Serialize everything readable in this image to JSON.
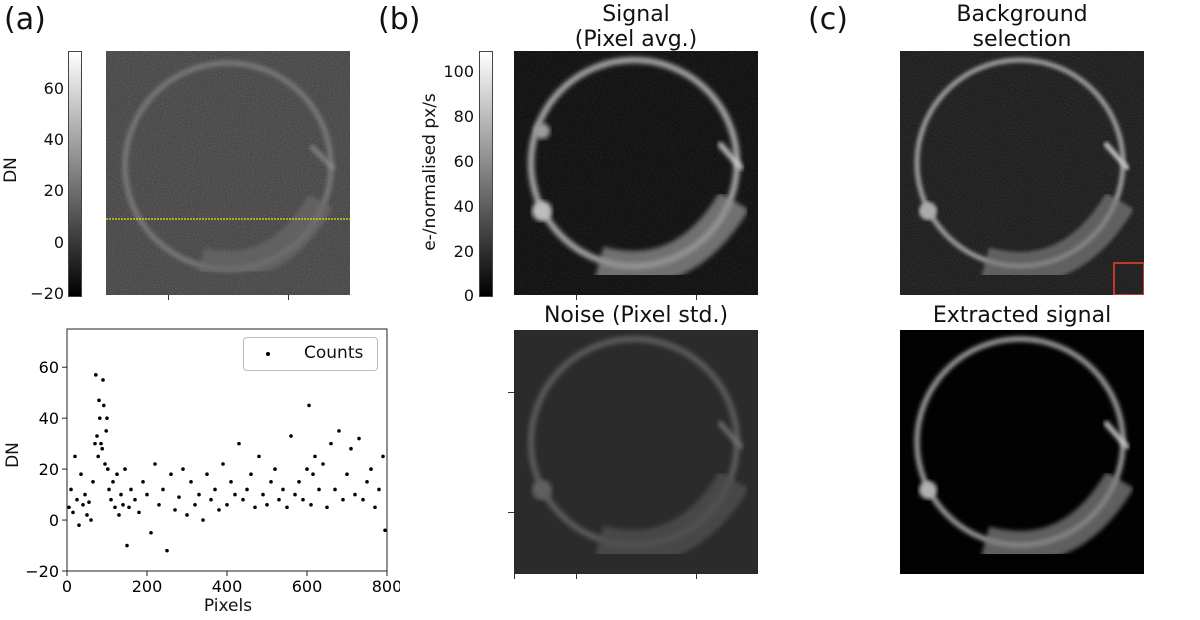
{
  "panel_labels": {
    "a": "(a)",
    "b": "(b)",
    "c": "(c)"
  },
  "panels": {
    "raw_frame": {
      "colorbar_label": "DN",
      "colorbar_ticks": [
        "60",
        "40",
        "20",
        "0",
        "−20"
      ],
      "colorbar_range": [
        -20,
        75
      ],
      "line_profile_color": "#e6e600"
    },
    "signal": {
      "title_line1": "Signal",
      "title_line2": "(Pixel avg.)",
      "colorbar_label": "e-/normalised px/s",
      "colorbar_ticks": [
        "100",
        "80",
        "60",
        "40",
        "20",
        "0"
      ],
      "colorbar_range": [
        0,
        110
      ]
    },
    "noise": {
      "title": "Noise (Pixel std.)"
    },
    "background": {
      "title_line1": "Background",
      "title_line2": "selection",
      "selection_box_color": "#c0392b"
    },
    "extracted": {
      "title": "Extracted signal"
    }
  },
  "chart_data": {
    "type": "scatter",
    "xlabel": "Pixels",
    "ylabel": "DN",
    "xlim": [
      0,
      800
    ],
    "ylim": [
      -20,
      75
    ],
    "x_ticks": [
      0,
      200,
      400,
      600,
      800
    ],
    "y_ticks": [
      -20,
      0,
      20,
      40,
      60
    ],
    "legend": {
      "label": "Counts",
      "placement": "top-right"
    },
    "series": [
      {
        "name": "Counts",
        "x": [
          5,
          10,
          15,
          20,
          25,
          30,
          35,
          40,
          45,
          50,
          55,
          60,
          65,
          70,
          72,
          75,
          78,
          80,
          82,
          85,
          88,
          90,
          92,
          95,
          98,
          100,
          102,
          105,
          110,
          115,
          120,
          125,
          130,
          135,
          140,
          145,
          150,
          155,
          160,
          170,
          180,
          190,
          200,
          210,
          220,
          230,
          240,
          250,
          260,
          270,
          280,
          290,
          300,
          310,
          320,
          330,
          340,
          350,
          360,
          370,
          380,
          390,
          400,
          410,
          420,
          430,
          440,
          450,
          460,
          470,
          480,
          490,
          500,
          510,
          520,
          530,
          540,
          550,
          560,
          570,
          580,
          590,
          600,
          605,
          610,
          615,
          620,
          630,
          640,
          650,
          660,
          670,
          680,
          690,
          700,
          710,
          720,
          730,
          740,
          750,
          760,
          770,
          780,
          790,
          795
        ],
        "y": [
          5,
          12,
          3,
          25,
          8,
          -2,
          18,
          6,
          10,
          2,
          7,
          0,
          15,
          30,
          57,
          33,
          25,
          47,
          40,
          30,
          28,
          55,
          45,
          22,
          35,
          40,
          20,
          12,
          8,
          15,
          5,
          18,
          2,
          10,
          6,
          20,
          -10,
          5,
          12,
          8,
          3,
          15,
          10,
          -5,
          22,
          6,
          12,
          -12,
          18,
          4,
          9,
          20,
          2,
          15,
          6,
          10,
          0,
          18,
          8,
          12,
          4,
          22,
          6,
          15,
          10,
          30,
          8,
          12,
          18,
          5,
          25,
          10,
          6,
          15,
          20,
          8,
          12,
          5,
          33,
          10,
          15,
          8,
          20,
          45,
          6,
          18,
          25,
          12,
          22,
          5,
          30,
          12,
          35,
          8,
          18,
          28,
          10,
          32,
          8,
          15,
          20,
          5,
          12,
          25,
          -4
        ]
      }
    ]
  }
}
